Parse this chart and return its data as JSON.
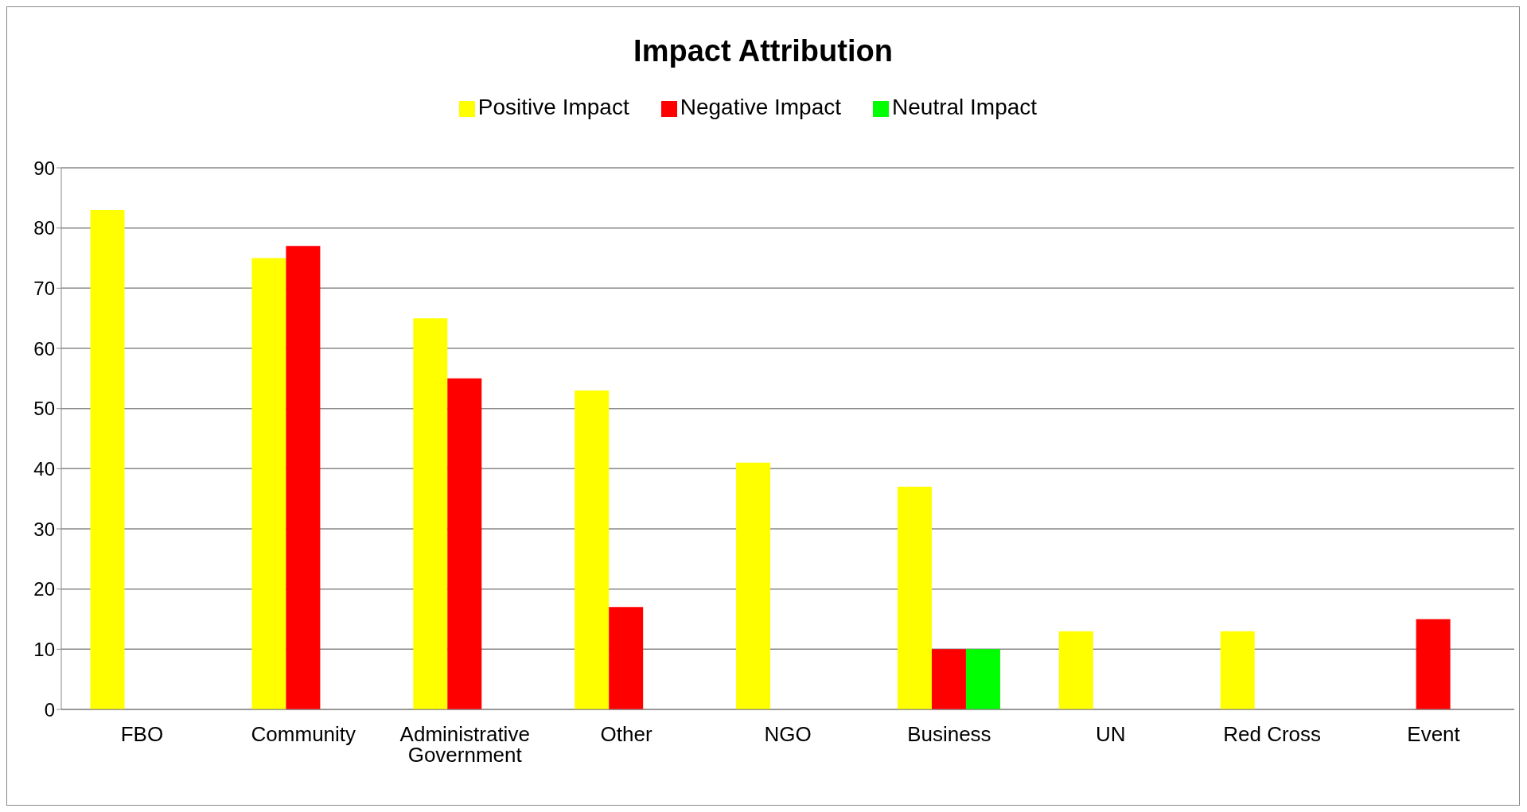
{
  "chart_data": {
    "type": "bar",
    "title": "Impact Attribution",
    "categories": [
      "FBO",
      "Community",
      "Administrative Government",
      "Other",
      "NGO",
      "Business",
      "UN",
      "Red Cross",
      "Event"
    ],
    "series": [
      {
        "name": "Positive Impact",
        "color": "#ffff00",
        "values": [
          83,
          75,
          65,
          53,
          41,
          37,
          13,
          13,
          null
        ]
      },
      {
        "name": "Negative Impact",
        "color": "#ff0000",
        "values": [
          null,
          77,
          55,
          17,
          null,
          10,
          null,
          null,
          15
        ]
      },
      {
        "name": "Neutral Impact",
        "color": "#00ff00",
        "values": [
          null,
          null,
          null,
          null,
          null,
          10,
          null,
          null,
          null
        ]
      }
    ],
    "ylim": [
      0,
      90
    ],
    "yticks": [
      0,
      10,
      20,
      30,
      40,
      50,
      60,
      70,
      80,
      90
    ],
    "grid": "y",
    "legend": "top"
  }
}
